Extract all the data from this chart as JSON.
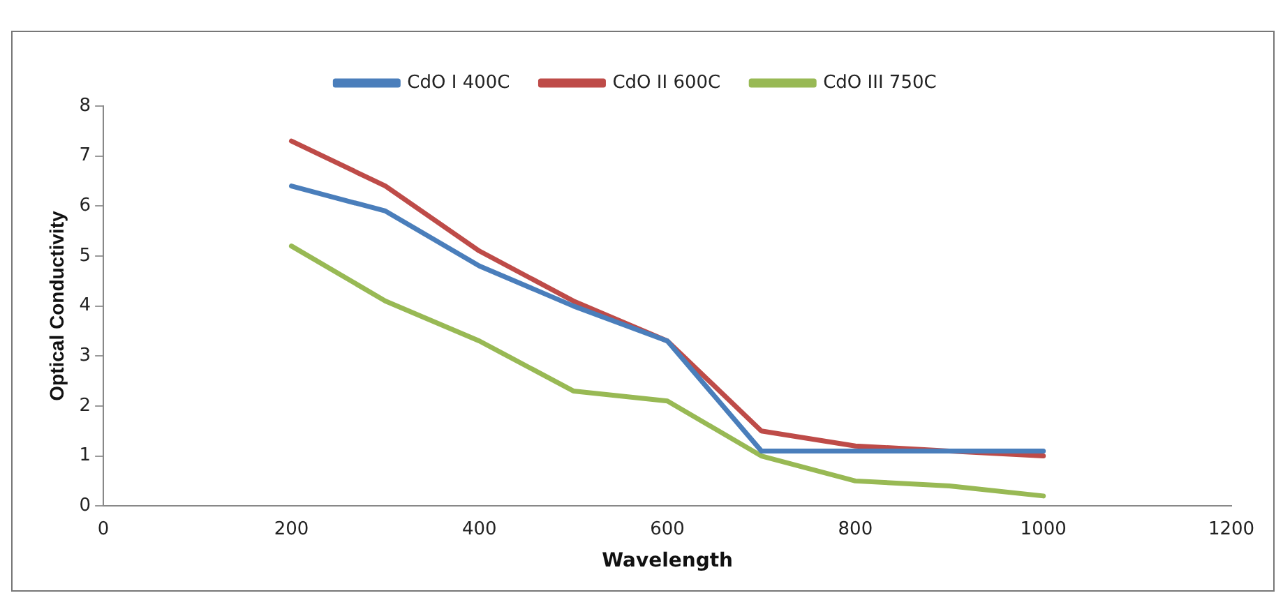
{
  "chart_data": {
    "type": "line",
    "xlabel": "Wavelength",
    "ylabel": "Optical Conductivity",
    "x": [
      200,
      300,
      400,
      500,
      600,
      700,
      800,
      900,
      1000
    ],
    "series": [
      {
        "name": "CdO I 400C",
        "color": "#4a7ebb",
        "values": [
          6.4,
          5.9,
          4.8,
          4.0,
          3.3,
          1.1,
          1.1,
          1.1,
          1.1
        ]
      },
      {
        "name": "CdO II 600C",
        "color": "#be4b48",
        "values": [
          7.3,
          6.4,
          5.1,
          4.1,
          3.3,
          1.5,
          1.2,
          1.1,
          1.0
        ]
      },
      {
        "name": "CdO III 750C",
        "color": "#98b954",
        "values": [
          5.2,
          4.1,
          3.3,
          2.3,
          2.1,
          1.0,
          0.5,
          0.4,
          0.2
        ]
      }
    ],
    "xlim": [
      0,
      1200
    ],
    "xticks": [
      0,
      200,
      400,
      600,
      800,
      1000,
      1200
    ],
    "ylim": [
      0,
      8
    ],
    "yticks": [
      0,
      1,
      2,
      3,
      4,
      5,
      6,
      7,
      8
    ],
    "grid": false,
    "legend": "top",
    "marker": "none",
    "line_style": "solid"
  }
}
